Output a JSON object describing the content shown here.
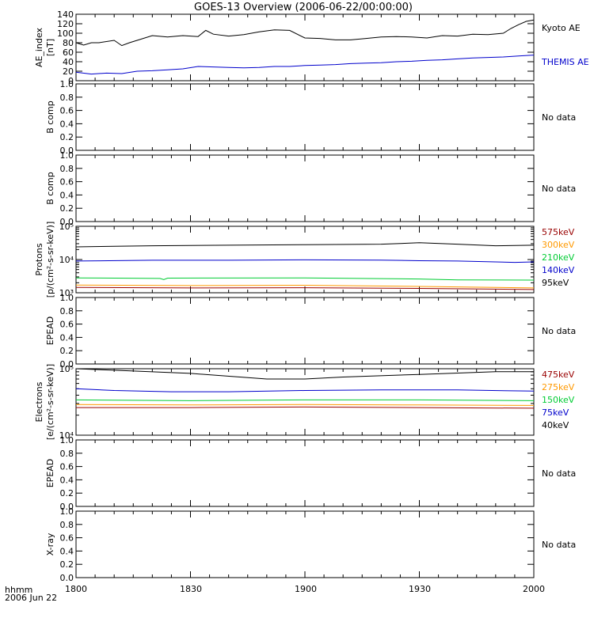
{
  "title": "GOES-13 Overview (2006-06-22/00:00:00)",
  "time_axis": {
    "label_line1": "hhmm",
    "label_line2": "2006 Jun 22",
    "ticks": [
      "1800",
      "1830",
      "1900",
      "1930",
      "2000"
    ]
  },
  "colors": {
    "black": "#000000",
    "blue": "#0000cc",
    "green": "#00cc33",
    "orange": "#ff9900",
    "darkred": "#990000"
  },
  "chart_data": [
    {
      "type": "line",
      "ylabel_lines": [
        "AE_index",
        "[nT]"
      ],
      "yscale": "linear",
      "ylim": [
        0,
        140
      ],
      "yticks": [
        "0",
        "20",
        "40",
        "60",
        "80",
        "100",
        "120",
        "140"
      ],
      "x_unit": "minutes after 18:00",
      "xlim": [
        0,
        120
      ],
      "series": [
        {
          "name": "Kyoto AE",
          "color": "#000000",
          "x": [
            0,
            2,
            4,
            6,
            10,
            12,
            14,
            16,
            20,
            24,
            28,
            32,
            34,
            36,
            40,
            44,
            48,
            52,
            56,
            60,
            64,
            68,
            72,
            76,
            80,
            84,
            88,
            92,
            96,
            100,
            104,
            108,
            112,
            114,
            116,
            118,
            120
          ],
          "y": [
            80,
            75,
            80,
            80,
            85,
            74,
            80,
            85,
            95,
            92,
            95,
            93,
            106,
            98,
            94,
            97,
            103,
            107,
            106,
            90,
            89,
            86,
            86,
            89,
            92,
            93,
            92,
            90,
            95,
            94,
            98,
            97,
            100,
            110,
            118,
            125,
            128
          ]
        },
        {
          "name": "THEMIS AE",
          "color": "#0000cc",
          "x": [
            0,
            4,
            8,
            12,
            16,
            20,
            24,
            28,
            32,
            36,
            40,
            44,
            48,
            52,
            56,
            60,
            64,
            68,
            72,
            76,
            80,
            84,
            88,
            92,
            96,
            100,
            104,
            108,
            112,
            116,
            120
          ],
          "y": [
            18,
            14,
            16,
            15,
            20,
            21,
            23,
            25,
            30,
            29,
            28,
            27,
            28,
            30,
            30,
            32,
            33,
            34,
            36,
            37,
            38,
            40,
            41,
            43,
            44,
            46,
            48,
            49,
            50,
            52,
            54
          ]
        }
      ]
    },
    {
      "type": "line",
      "ylabel_lines": [
        "B comp"
      ],
      "yscale": "linear",
      "ylim": [
        0,
        1
      ],
      "yticks": [
        "0.0",
        "0.2",
        "0.4",
        "0.6",
        "0.8",
        "1.0"
      ],
      "note": "No data",
      "series": []
    },
    {
      "type": "line",
      "ylabel_lines": [
        "B comp"
      ],
      "yscale": "linear",
      "ylim": [
        0,
        1
      ],
      "yticks": [
        "0.0",
        "0.2",
        "0.4",
        "0.6",
        "0.8",
        "1.0"
      ],
      "note": "No data",
      "series": []
    },
    {
      "type": "line",
      "ylabel_lines": [
        "Protons",
        "[p/(cm²-s-sr-keV)]"
      ],
      "yscale": "log",
      "ylim": [
        1000,
        100000
      ],
      "yticks": [
        "10³",
        "10⁴",
        "10⁵"
      ],
      "x_unit": "minutes after 18:00",
      "xlim": [
        0,
        120
      ],
      "series": [
        {
          "name": "575keV",
          "color": "#990000",
          "x": [
            0,
            30,
            60,
            90,
            120
          ],
          "y": [
            1450,
            1400,
            1420,
            1350,
            1250
          ]
        },
        {
          "name": "300keV",
          "color": "#ff9900",
          "x": [
            0,
            30,
            60,
            90,
            120
          ],
          "y": [
            1700,
            1650,
            1680,
            1550,
            1400
          ]
        },
        {
          "name": "210keV",
          "color": "#00cc33",
          "x": [
            0,
            22,
            23,
            24,
            60,
            90,
            100,
            120
          ],
          "y": [
            2800,
            2700,
            2500,
            2750,
            2800,
            2600,
            2450,
            2400
          ]
        },
        {
          "name": "140keV",
          "color": "#0000cc",
          "x": [
            0,
            20,
            40,
            60,
            80,
            90,
            100,
            115,
            120
          ],
          "y": [
            9000,
            9500,
            9500,
            9800,
            9600,
            9200,
            9000,
            8200,
            8500
          ]
        },
        {
          "name": "95keV",
          "color": "#000000",
          "x": [
            0,
            10,
            20,
            40,
            60,
            80,
            90,
            100,
            110,
            120
          ],
          "y": [
            24000,
            25000,
            26000,
            27000,
            28000,
            29000,
            32000,
            29000,
            26000,
            27000
          ]
        }
      ]
    },
    {
      "type": "line",
      "ylabel_lines": [
        "EPEAD"
      ],
      "yscale": "linear",
      "ylim": [
        0,
        1
      ],
      "yticks": [
        "0.0",
        "0.2",
        "0.4",
        "0.6",
        "0.8",
        "1.0"
      ],
      "note": "No data",
      "series": []
    },
    {
      "type": "line",
      "ylabel_lines": [
        "Electrons",
        "[e/(cm²-s-sr-keV)]"
      ],
      "yscale": "log",
      "ylim": [
        10000,
        100000
      ],
      "yticks": [
        "10⁴",
        "10⁵"
      ],
      "x_unit": "minutes after 18:00",
      "xlim": [
        0,
        120
      ],
      "series": [
        {
          "name": "475keV",
          "color": "#990000",
          "x": [
            0,
            30,
            60,
            90,
            120
          ],
          "y": [
            26000,
            26000,
            26500,
            26000,
            25500
          ]
        },
        {
          "name": "275keV",
          "color": "#ff9900",
          "x": [
            0,
            30,
            60,
            90,
            120
          ],
          "y": [
            29000,
            28500,
            29000,
            28500,
            28000
          ]
        },
        {
          "name": "150keV",
          "color": "#00cc33",
          "x": [
            0,
            30,
            60,
            90,
            120
          ],
          "y": [
            34000,
            33000,
            34000,
            34000,
            33000
          ]
        },
        {
          "name": "75keV",
          "color": "#0000cc",
          "x": [
            0,
            10,
            25,
            40,
            60,
            80,
            100,
            120
          ],
          "y": [
            50000,
            47000,
            45000,
            45000,
            47000,
            48000,
            48000,
            46000
          ]
        },
        {
          "name": "40keV",
          "color": "#000000",
          "x": [
            0,
            10,
            30,
            50,
            60,
            70,
            90,
            110,
            120
          ],
          "y": [
            100000,
            95000,
            85000,
            70000,
            70000,
            75000,
            82000,
            90000,
            90000
          ]
        }
      ]
    },
    {
      "type": "line",
      "ylabel_lines": [
        "EPEAD"
      ],
      "yscale": "linear",
      "ylim": [
        0,
        1
      ],
      "yticks": [
        "0.0",
        "0.2",
        "0.4",
        "0.6",
        "0.8",
        "1.0"
      ],
      "note": "No data",
      "series": []
    },
    {
      "type": "line",
      "ylabel_lines": [
        "X-ray"
      ],
      "yscale": "linear",
      "ylim": [
        0,
        1
      ],
      "yticks": [
        "0.0",
        "0.2",
        "0.4",
        "0.6",
        "0.8",
        "1.0"
      ],
      "note": "No data",
      "series": []
    }
  ]
}
